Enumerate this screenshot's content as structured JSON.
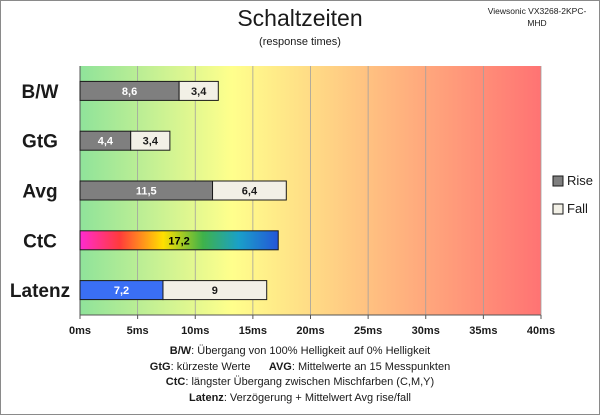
{
  "header": {
    "title": "Schaltzeiten",
    "subtitle": "(response times)",
    "model_line1": "Viewsonic VX3268-2KPC-",
    "model_line2": "MHD"
  },
  "notes": [
    {
      "key": "B/W",
      "text": ":  Übergang von 100% Helligkeit auf 0% Helligkeit"
    },
    {
      "key": "GtG",
      "text": ": kürzeste  Werte",
      "key2": "AVG",
      "text2": ": Mittelwerte  an 15 Messpunkten"
    },
    {
      "key": "CtC",
      "text": ": längster Übergang  zwischen Mischfarben (C,M,Y)"
    },
    {
      "key": "Latenz",
      "text": ": Verzögerung  + Mittelwert Avg rise/fall"
    }
  ],
  "colors": {
    "rise": "#7f7f7f",
    "fall": "#f2f0e6",
    "latency_rise": "#3a6ff5",
    "bar_border": "#1a1a1a",
    "grad_left": "#8fe39a",
    "grad_yellow": "#ffff8c",
    "grad_right": "#ff7373"
  },
  "chart_data": {
    "type": "bar",
    "orientation": "horizontal",
    "stacked": true,
    "title": "Schaltzeiten",
    "subtitle": "(response times)",
    "categories": [
      "B/W",
      "GtG",
      "Avg",
      "CtC",
      "Latenz"
    ],
    "series": [
      {
        "name": "Rise",
        "values": [
          8.6,
          4.4,
          11.5,
          17.2,
          7.2
        ],
        "labels": [
          "8,6",
          "4,4",
          "11,5",
          "17,2",
          "7,2"
        ]
      },
      {
        "name": "Fall",
        "values": [
          3.4,
          3.4,
          6.4,
          null,
          9.0
        ],
        "labels": [
          "3,4",
          "3,4",
          "6,4",
          "",
          "9"
        ]
      }
    ],
    "xlim": [
      0,
      40
    ],
    "xticks": [
      0,
      5,
      10,
      15,
      20,
      25,
      30,
      35,
      40
    ],
    "xtick_labels": [
      "0ms",
      "5ms",
      "10ms",
      "15ms",
      "20ms",
      "25ms",
      "30ms",
      "35ms",
      "40ms"
    ],
    "legend_position": "right",
    "background": "gradient green-yellow-red"
  }
}
